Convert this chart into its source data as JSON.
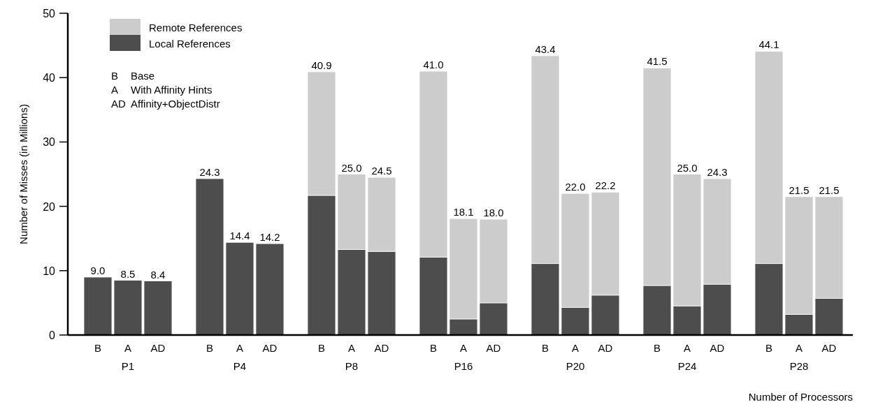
{
  "chart_data": {
    "type": "bar",
    "stacked": true,
    "ylabel": "Number of Misses (in Millions)",
    "xlabel": "Number of Processors",
    "categories": [
      "B",
      "A",
      "AD",
      "B",
      "A",
      "AD",
      "B",
      "A",
      "AD",
      "B",
      "A",
      "AD",
      "B",
      "A",
      "AD",
      "B",
      "A",
      "AD",
      "B",
      "A",
      "AD"
    ],
    "series": [
      {
        "name": "Local References",
        "color": "#4d4d4d",
        "values": [
          9.0,
          8.5,
          8.4,
          24.3,
          14.4,
          14.2,
          21.7,
          13.3,
          13.0,
          12.1,
          2.5,
          5.0,
          11.1,
          4.3,
          6.2,
          7.7,
          4.5,
          7.9,
          11.1,
          3.2,
          5.7
        ]
      },
      {
        "name": "Remote References",
        "color": "#cccccc",
        "values": [
          0,
          0,
          0,
          0,
          0,
          0,
          19.2,
          11.7,
          11.5,
          28.9,
          15.6,
          13.0,
          32.3,
          17.7,
          16.0,
          33.8,
          20.5,
          16.4,
          33.0,
          18.3,
          15.8
        ]
      }
    ],
    "totals": [
      "9.0",
      "8.5",
      "8.4",
      "24.3",
      "14.4",
      "14.2",
      "40.9",
      "25.0",
      "24.5",
      "41.0",
      "18.1",
      "18.0",
      "43.4",
      "22.0",
      "22.2",
      "41.5",
      "25.0",
      "24.3",
      "44.1",
      "21.5",
      "21.5"
    ],
    "annotations": [
      "P1",
      "P4",
      "P8",
      "P16",
      "P20",
      "P24",
      "P28",
      "B Base",
      "A With Affinity Hints",
      "AD Affinity+ObjectDistr"
    ],
    "ylim": [
      0,
      50
    ],
    "yticks": [
      0,
      10,
      20,
      30,
      40,
      50
    ],
    "legend": "top left"
  }
}
